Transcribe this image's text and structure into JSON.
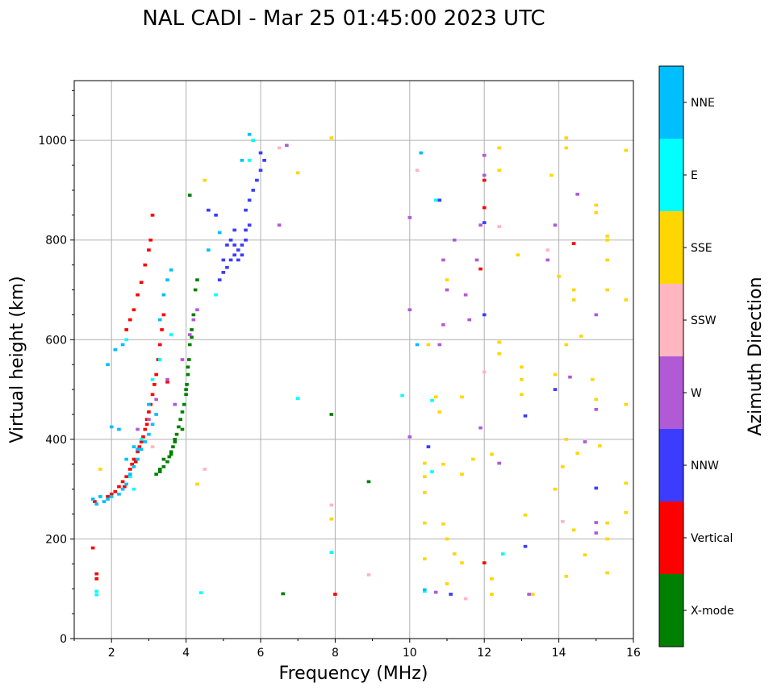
{
  "chart_data": {
    "type": "scatter",
    "title": "NAL CADI - Mar 25 01:45:00 2023 UTC",
    "xlabel": "Frequency (MHz)",
    "ylabel": "Virtual height (km)",
    "xlim": [
      1,
      16
    ],
    "ylim": [
      0,
      1120
    ],
    "x_ticks": [
      2,
      4,
      6,
      8,
      10,
      12,
      14,
      16
    ],
    "y_ticks": [
      0,
      200,
      400,
      600,
      800,
      1000
    ],
    "grid": true,
    "colorbar": {
      "label": "Azimuth Direction",
      "categories": [
        {
          "name": "X-mode",
          "color": "#008000"
        },
        {
          "name": "Vertical",
          "color": "#ff0000"
        },
        {
          "name": "NNW",
          "color": "#3c3cff"
        },
        {
          "name": "W",
          "color": "#b05ad6"
        },
        {
          "name": "SSW",
          "color": "#ffb6c1"
        },
        {
          "name": "SSE",
          "color": "#ffd700"
        },
        {
          "name": "E",
          "color": "#00ffff"
        },
        {
          "name": "NNE",
          "color": "#00bfff"
        }
      ]
    },
    "series": [
      {
        "name": "X-mode",
        "points": [
          [
            3.2,
            330
          ],
          [
            3.3,
            340
          ],
          [
            3.4,
            345
          ],
          [
            3.5,
            355
          ],
          [
            3.55,
            365
          ],
          [
            3.6,
            375
          ],
          [
            3.65,
            385
          ],
          [
            3.7,
            395
          ],
          [
            3.75,
            410
          ],
          [
            3.8,
            425
          ],
          [
            3.85,
            440
          ],
          [
            3.9,
            455
          ],
          [
            3.95,
            470
          ],
          [
            4.0,
            490
          ],
          [
            4.02,
            510
          ],
          [
            4.05,
            530
          ],
          [
            4.08,
            560
          ],
          [
            4.1,
            590
          ],
          [
            4.15,
            620
          ],
          [
            4.2,
            650
          ],
          [
            4.25,
            700
          ],
          [
            4.1,
            890
          ],
          [
            3.4,
            360
          ],
          [
            3.6,
            370
          ],
          [
            3.9,
            420
          ],
          [
            4.0,
            500
          ],
          [
            7.9,
            450
          ],
          [
            8.9,
            315
          ],
          [
            6.6,
            90
          ],
          [
            3.3,
            335
          ],
          [
            3.7,
            400
          ],
          [
            4.05,
            545
          ],
          [
            4.15,
            605
          ],
          [
            4.3,
            720
          ]
        ]
      },
      {
        "name": "Vertical",
        "points": [
          [
            1.6,
            130
          ],
          [
            1.6,
            120
          ],
          [
            1.5,
            182
          ],
          [
            1.55,
            275
          ],
          [
            1.9,
            285
          ],
          [
            2.0,
            290
          ],
          [
            2.1,
            295
          ],
          [
            2.2,
            305
          ],
          [
            2.3,
            315
          ],
          [
            2.4,
            325
          ],
          [
            2.5,
            340
          ],
          [
            2.55,
            350
          ],
          [
            2.6,
            360
          ],
          [
            2.7,
            375
          ],
          [
            2.75,
            385
          ],
          [
            2.8,
            395
          ],
          [
            2.85,
            405
          ],
          [
            2.9,
            420
          ],
          [
            2.95,
            440
          ],
          [
            3.0,
            455
          ],
          [
            3.05,
            470
          ],
          [
            3.1,
            490
          ],
          [
            3.15,
            510
          ],
          [
            3.2,
            530
          ],
          [
            3.25,
            560
          ],
          [
            3.3,
            590
          ],
          [
            3.35,
            620
          ],
          [
            3.4,
            650
          ],
          [
            2.4,
            620
          ],
          [
            2.5,
            640
          ],
          [
            2.6,
            660
          ],
          [
            2.7,
            690
          ],
          [
            2.8,
            715
          ],
          [
            2.9,
            750
          ],
          [
            3.0,
            780
          ],
          [
            3.05,
            800
          ],
          [
            3.1,
            850
          ],
          [
            3.5,
            515
          ],
          [
            2.35,
            305
          ],
          [
            2.65,
            355
          ],
          [
            2.95,
            430
          ],
          [
            8.0,
            89
          ],
          [
            14.4,
            793
          ],
          [
            12.0,
            920
          ],
          [
            12.0,
            865
          ],
          [
            12.0,
            152
          ],
          [
            11.9,
            742
          ]
        ]
      },
      {
        "name": "NNW",
        "points": [
          [
            4.9,
            720
          ],
          [
            5.0,
            735
          ],
          [
            5.1,
            745
          ],
          [
            5.2,
            760
          ],
          [
            5.3,
            770
          ],
          [
            5.4,
            780
          ],
          [
            5.5,
            790
          ],
          [
            5.6,
            800
          ],
          [
            5.2,
            800
          ],
          [
            5.3,
            790
          ],
          [
            5.4,
            760
          ],
          [
            5.0,
            760
          ],
          [
            5.5,
            770
          ],
          [
            5.6,
            820
          ],
          [
            5.7,
            830
          ],
          [
            5.6,
            860
          ],
          [
            5.7,
            880
          ],
          [
            5.8,
            900
          ],
          [
            5.9,
            920
          ],
          [
            6.0,
            940
          ],
          [
            6.1,
            960
          ],
          [
            6.0,
            975
          ],
          [
            5.8,
            1000
          ],
          [
            5.3,
            820
          ],
          [
            5.1,
            790
          ],
          [
            4.6,
            860
          ],
          [
            4.8,
            850
          ],
          [
            10.5,
            385
          ],
          [
            12.0,
            835
          ],
          [
            12.0,
            650
          ],
          [
            11.1,
            89
          ],
          [
            13.9,
            500
          ],
          [
            13.1,
            447
          ],
          [
            13.1,
            185
          ],
          [
            15.0,
            302
          ],
          [
            10.8,
            880
          ]
        ]
      },
      {
        "name": "W",
        "points": [
          [
            2.7,
            420
          ],
          [
            3.0,
            440
          ],
          [
            3.2,
            480
          ],
          [
            3.5,
            520
          ],
          [
            3.7,
            470
          ],
          [
            3.9,
            560
          ],
          [
            4.1,
            610
          ],
          [
            4.2,
            640
          ],
          [
            4.3,
            660
          ],
          [
            6.5,
            830
          ],
          [
            6.7,
            990
          ],
          [
            10.0,
            660
          ],
          [
            10.0,
            845
          ],
          [
            10.0,
            405
          ],
          [
            10.8,
            590
          ],
          [
            10.9,
            630
          ],
          [
            11.0,
            700
          ],
          [
            11.2,
            800
          ],
          [
            11.5,
            690
          ],
          [
            11.6,
            640
          ],
          [
            11.8,
            760
          ],
          [
            11.9,
            830
          ],
          [
            12.0,
            930
          ],
          [
            12.4,
            352
          ],
          [
            12.0,
            970
          ],
          [
            13.2,
            89
          ],
          [
            13.7,
            760
          ],
          [
            13.9,
            830
          ],
          [
            14.3,
            525
          ],
          [
            14.5,
            892
          ],
          [
            14.7,
            395
          ],
          [
            15.0,
            233
          ],
          [
            15.0,
            650
          ],
          [
            15.0,
            460
          ],
          [
            15.0,
            212
          ],
          [
            11.9,
            423
          ],
          [
            10.7,
            93
          ],
          [
            10.9,
            760
          ]
        ]
      },
      {
        "name": "SSW",
        "points": [
          [
            3.1,
            385
          ],
          [
            4.5,
            340
          ],
          [
            6.5,
            985
          ],
          [
            7.9,
            268
          ],
          [
            8.9,
            128
          ],
          [
            10.2,
            940
          ],
          [
            12.4,
            827
          ],
          [
            13.7,
            780
          ],
          [
            12.0,
            535
          ],
          [
            14.1,
            235
          ],
          [
            11.5,
            80
          ]
        ]
      },
      {
        "name": "SSE",
        "points": [
          [
            1.7,
            340
          ],
          [
            4.3,
            310
          ],
          [
            4.5,
            920
          ],
          [
            7.0,
            935
          ],
          [
            7.9,
            1005
          ],
          [
            7.9,
            240
          ],
          [
            10.5,
            590
          ],
          [
            10.8,
            455
          ],
          [
            10.9,
            230
          ],
          [
            11.0,
            200
          ],
          [
            11.2,
            170
          ],
          [
            11.4,
            330
          ],
          [
            11.7,
            360
          ],
          [
            12.4,
            985
          ],
          [
            12.4,
            940
          ],
          [
            12.4,
            595
          ],
          [
            12.4,
            572
          ],
          [
            12.9,
            770
          ],
          [
            13.0,
            545
          ],
          [
            13.0,
            520
          ],
          [
            13.0,
            490
          ],
          [
            13.1,
            248
          ],
          [
            13.3,
            89
          ],
          [
            13.8,
            930
          ],
          [
            13.9,
            530
          ],
          [
            14.0,
            727
          ],
          [
            14.2,
            1005
          ],
          [
            14.2,
            985
          ],
          [
            14.2,
            590
          ],
          [
            14.2,
            400
          ],
          [
            14.2,
            125
          ],
          [
            14.4,
            700
          ],
          [
            14.4,
            680
          ],
          [
            14.5,
            372
          ],
          [
            14.6,
            607
          ],
          [
            14.7,
            168
          ],
          [
            14.9,
            520
          ],
          [
            15.0,
            480
          ],
          [
            15.0,
            870
          ],
          [
            15.0,
            855
          ],
          [
            15.1,
            387
          ],
          [
            15.3,
            808
          ],
          [
            15.3,
            800
          ],
          [
            15.3,
            760
          ],
          [
            15.3,
            700
          ],
          [
            15.3,
            200
          ],
          [
            15.3,
            232
          ],
          [
            15.3,
            132
          ],
          [
            15.8,
            980
          ],
          [
            15.8,
            680
          ],
          [
            15.8,
            470
          ],
          [
            15.8,
            312
          ],
          [
            15.8,
            253
          ],
          [
            10.4,
            352
          ],
          [
            10.4,
            325
          ],
          [
            10.4,
            293
          ],
          [
            10.4,
            232
          ],
          [
            10.4,
            160
          ],
          [
            10.7,
            485
          ],
          [
            11.4,
            485
          ],
          [
            12.2,
            370
          ],
          [
            12.2,
            120
          ],
          [
            12.2,
            89
          ],
          [
            13.9,
            300
          ],
          [
            14.1,
            345
          ],
          [
            14.4,
            218
          ],
          [
            11.0,
            110
          ],
          [
            11.4,
            152
          ],
          [
            11.0,
            720
          ],
          [
            10.9,
            350
          ]
        ]
      },
      {
        "name": "E",
        "points": [
          [
            1.6,
            95
          ],
          [
            1.6,
            88
          ],
          [
            2.4,
            600
          ],
          [
            2.5,
            325
          ],
          [
            2.6,
            300
          ],
          [
            2.8,
            400
          ],
          [
            3.1,
            520
          ],
          [
            3.3,
            560
          ],
          [
            3.6,
            610
          ],
          [
            4.4,
            92
          ],
          [
            4.8,
            690
          ],
          [
            5.7,
            960
          ],
          [
            5.8,
            1000
          ],
          [
            7.9,
            173
          ],
          [
            10.4,
            95
          ],
          [
            10.6,
            335
          ],
          [
            10.6,
            478
          ],
          [
            10.7,
            880
          ],
          [
            12.5,
            170
          ],
          [
            7.0,
            482
          ],
          [
            9.8,
            488
          ]
        ]
      },
      {
        "name": "NNE",
        "points": [
          [
            1.5,
            280
          ],
          [
            1.6,
            270
          ],
          [
            1.7,
            285
          ],
          [
            1.8,
            275
          ],
          [
            1.9,
            280
          ],
          [
            2.0,
            285
          ],
          [
            2.2,
            290
          ],
          [
            2.3,
            300
          ],
          [
            2.4,
            310
          ],
          [
            2.5,
            330
          ],
          [
            2.6,
            345
          ],
          [
            2.7,
            360
          ],
          [
            2.8,
            380
          ],
          [
            2.9,
            395
          ],
          [
            3.0,
            410
          ],
          [
            3.1,
            430
          ],
          [
            3.2,
            450
          ],
          [
            2.6,
            385
          ],
          [
            2.4,
            360
          ],
          [
            2.2,
            420
          ],
          [
            2.0,
            425
          ],
          [
            1.9,
            550
          ],
          [
            2.1,
            580
          ],
          [
            2.3,
            590
          ],
          [
            3.3,
            640
          ],
          [
            3.4,
            690
          ],
          [
            3.5,
            720
          ],
          [
            3.6,
            740
          ],
          [
            4.6,
            780
          ],
          [
            4.9,
            815
          ],
          [
            5.5,
            960
          ],
          [
            5.7,
            1012
          ],
          [
            10.3,
            975
          ],
          [
            10.4,
            98
          ],
          [
            10.2,
            590
          ],
          [
            3.0,
            470
          ],
          [
            2.7,
            380
          ]
        ]
      }
    ]
  }
}
